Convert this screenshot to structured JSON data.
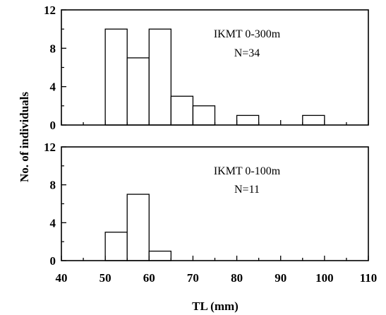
{
  "ylabel": "No. of individuals",
  "xlabel": "TL (mm)",
  "chart_data": [
    {
      "type": "bar",
      "annotation": [
        "IKMT 0-300m",
        "N=34"
      ],
      "bin_width": 5,
      "bins": [
        50,
        55,
        60,
        65,
        70,
        75,
        80,
        85,
        90,
        95
      ],
      "values": [
        10,
        7,
        10,
        3,
        2,
        0,
        1,
        0,
        0,
        1
      ],
      "xlim": [
        40,
        110
      ],
      "ylim": [
        0,
        12
      ],
      "yticks": [
        "0",
        "4",
        "8",
        "12"
      ]
    },
    {
      "type": "bar",
      "annotation": [
        "IKMT 0-100m",
        "N=11"
      ],
      "bin_width": 5,
      "bins": [
        50,
        55,
        60
      ],
      "values": [
        3,
        7,
        1
      ],
      "xlim": [
        40,
        110
      ],
      "ylim": [
        0,
        12
      ],
      "yticks": [
        "0",
        "4",
        "8",
        "12"
      ],
      "xticks": [
        "40",
        "50",
        "60",
        "70",
        "80",
        "90",
        "100",
        "110"
      ]
    }
  ]
}
